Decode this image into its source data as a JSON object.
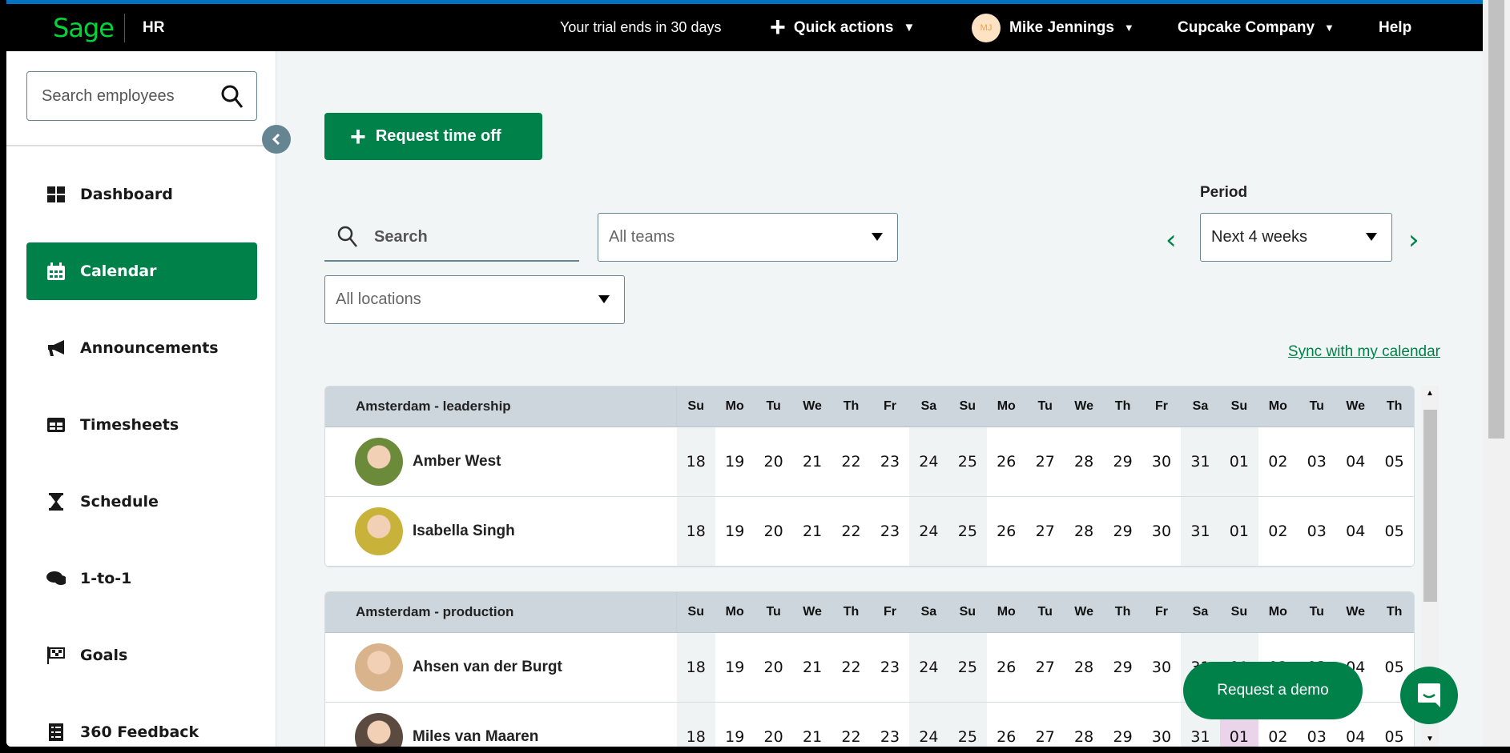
{
  "header": {
    "logo": "Sage",
    "product": "HR",
    "trial": "Your trial ends in 30 days",
    "quick_actions": "Quick actions",
    "user_initials": "MJ",
    "user_name": "Mike Jennings",
    "company": "Cupcake Company",
    "help": "Help"
  },
  "sidebar": {
    "search_placeholder": "Search employees",
    "items": [
      {
        "label": "Dashboard",
        "icon": "dashboard-icon"
      },
      {
        "label": "Calendar",
        "icon": "calendar-icon",
        "active": true
      },
      {
        "label": "Announcements",
        "icon": "megaphone-icon"
      },
      {
        "label": "Timesheets",
        "icon": "table-icon"
      },
      {
        "label": "Schedule",
        "icon": "hourglass-icon"
      },
      {
        "label": "1-to-1",
        "icon": "chat-bubbles-icon"
      },
      {
        "label": "Goals",
        "icon": "checkered-flag-icon"
      },
      {
        "label": "360 Feedback",
        "icon": "checklist-icon"
      }
    ]
  },
  "main": {
    "request_time_off": "Request time off",
    "search_placeholder": "Search",
    "teams_select": "All teams",
    "locations_select": "All locations",
    "period_label": "Period",
    "period_select": "Next 4 weeks",
    "sync_link": "Sync with my calendar"
  },
  "calendar": {
    "day_headers": [
      "Su",
      "Mo",
      "Tu",
      "We",
      "Th",
      "Fr",
      "Sa",
      "Su",
      "Mo",
      "Tu",
      "We",
      "Th",
      "Fr",
      "Sa",
      "Su",
      "Mo",
      "Tu",
      "We",
      "Th"
    ],
    "dates": [
      "18",
      "19",
      "20",
      "21",
      "22",
      "23",
      "24",
      "25",
      "26",
      "27",
      "28",
      "29",
      "30",
      "31",
      "01",
      "02",
      "03",
      "04",
      "05"
    ],
    "weekend_indices": [
      0,
      6,
      7,
      13,
      14
    ],
    "groups": [
      {
        "name": "Amsterdam - leadership",
        "employees": [
          {
            "name": "Amber West",
            "avatar": "#6b8a3a"
          },
          {
            "name": "Isabella Singh",
            "avatar": "#c9b23a"
          }
        ]
      },
      {
        "name": "Amsterdam - production",
        "employees": [
          {
            "name": "Ahsen van der Burgt",
            "avatar": "#d9b38c",
            "highlight": []
          },
          {
            "name": "Miles van Maaren",
            "avatar": "#5a4a40",
            "highlight": [
              14
            ]
          }
        ]
      }
    ]
  },
  "floating": {
    "request_demo": "Request a demo"
  },
  "colors": {
    "brand_green": "#00814a",
    "logo_green": "#00d639",
    "top_accent": "#0073c2",
    "highlight_pink": "#ead4ea"
  }
}
